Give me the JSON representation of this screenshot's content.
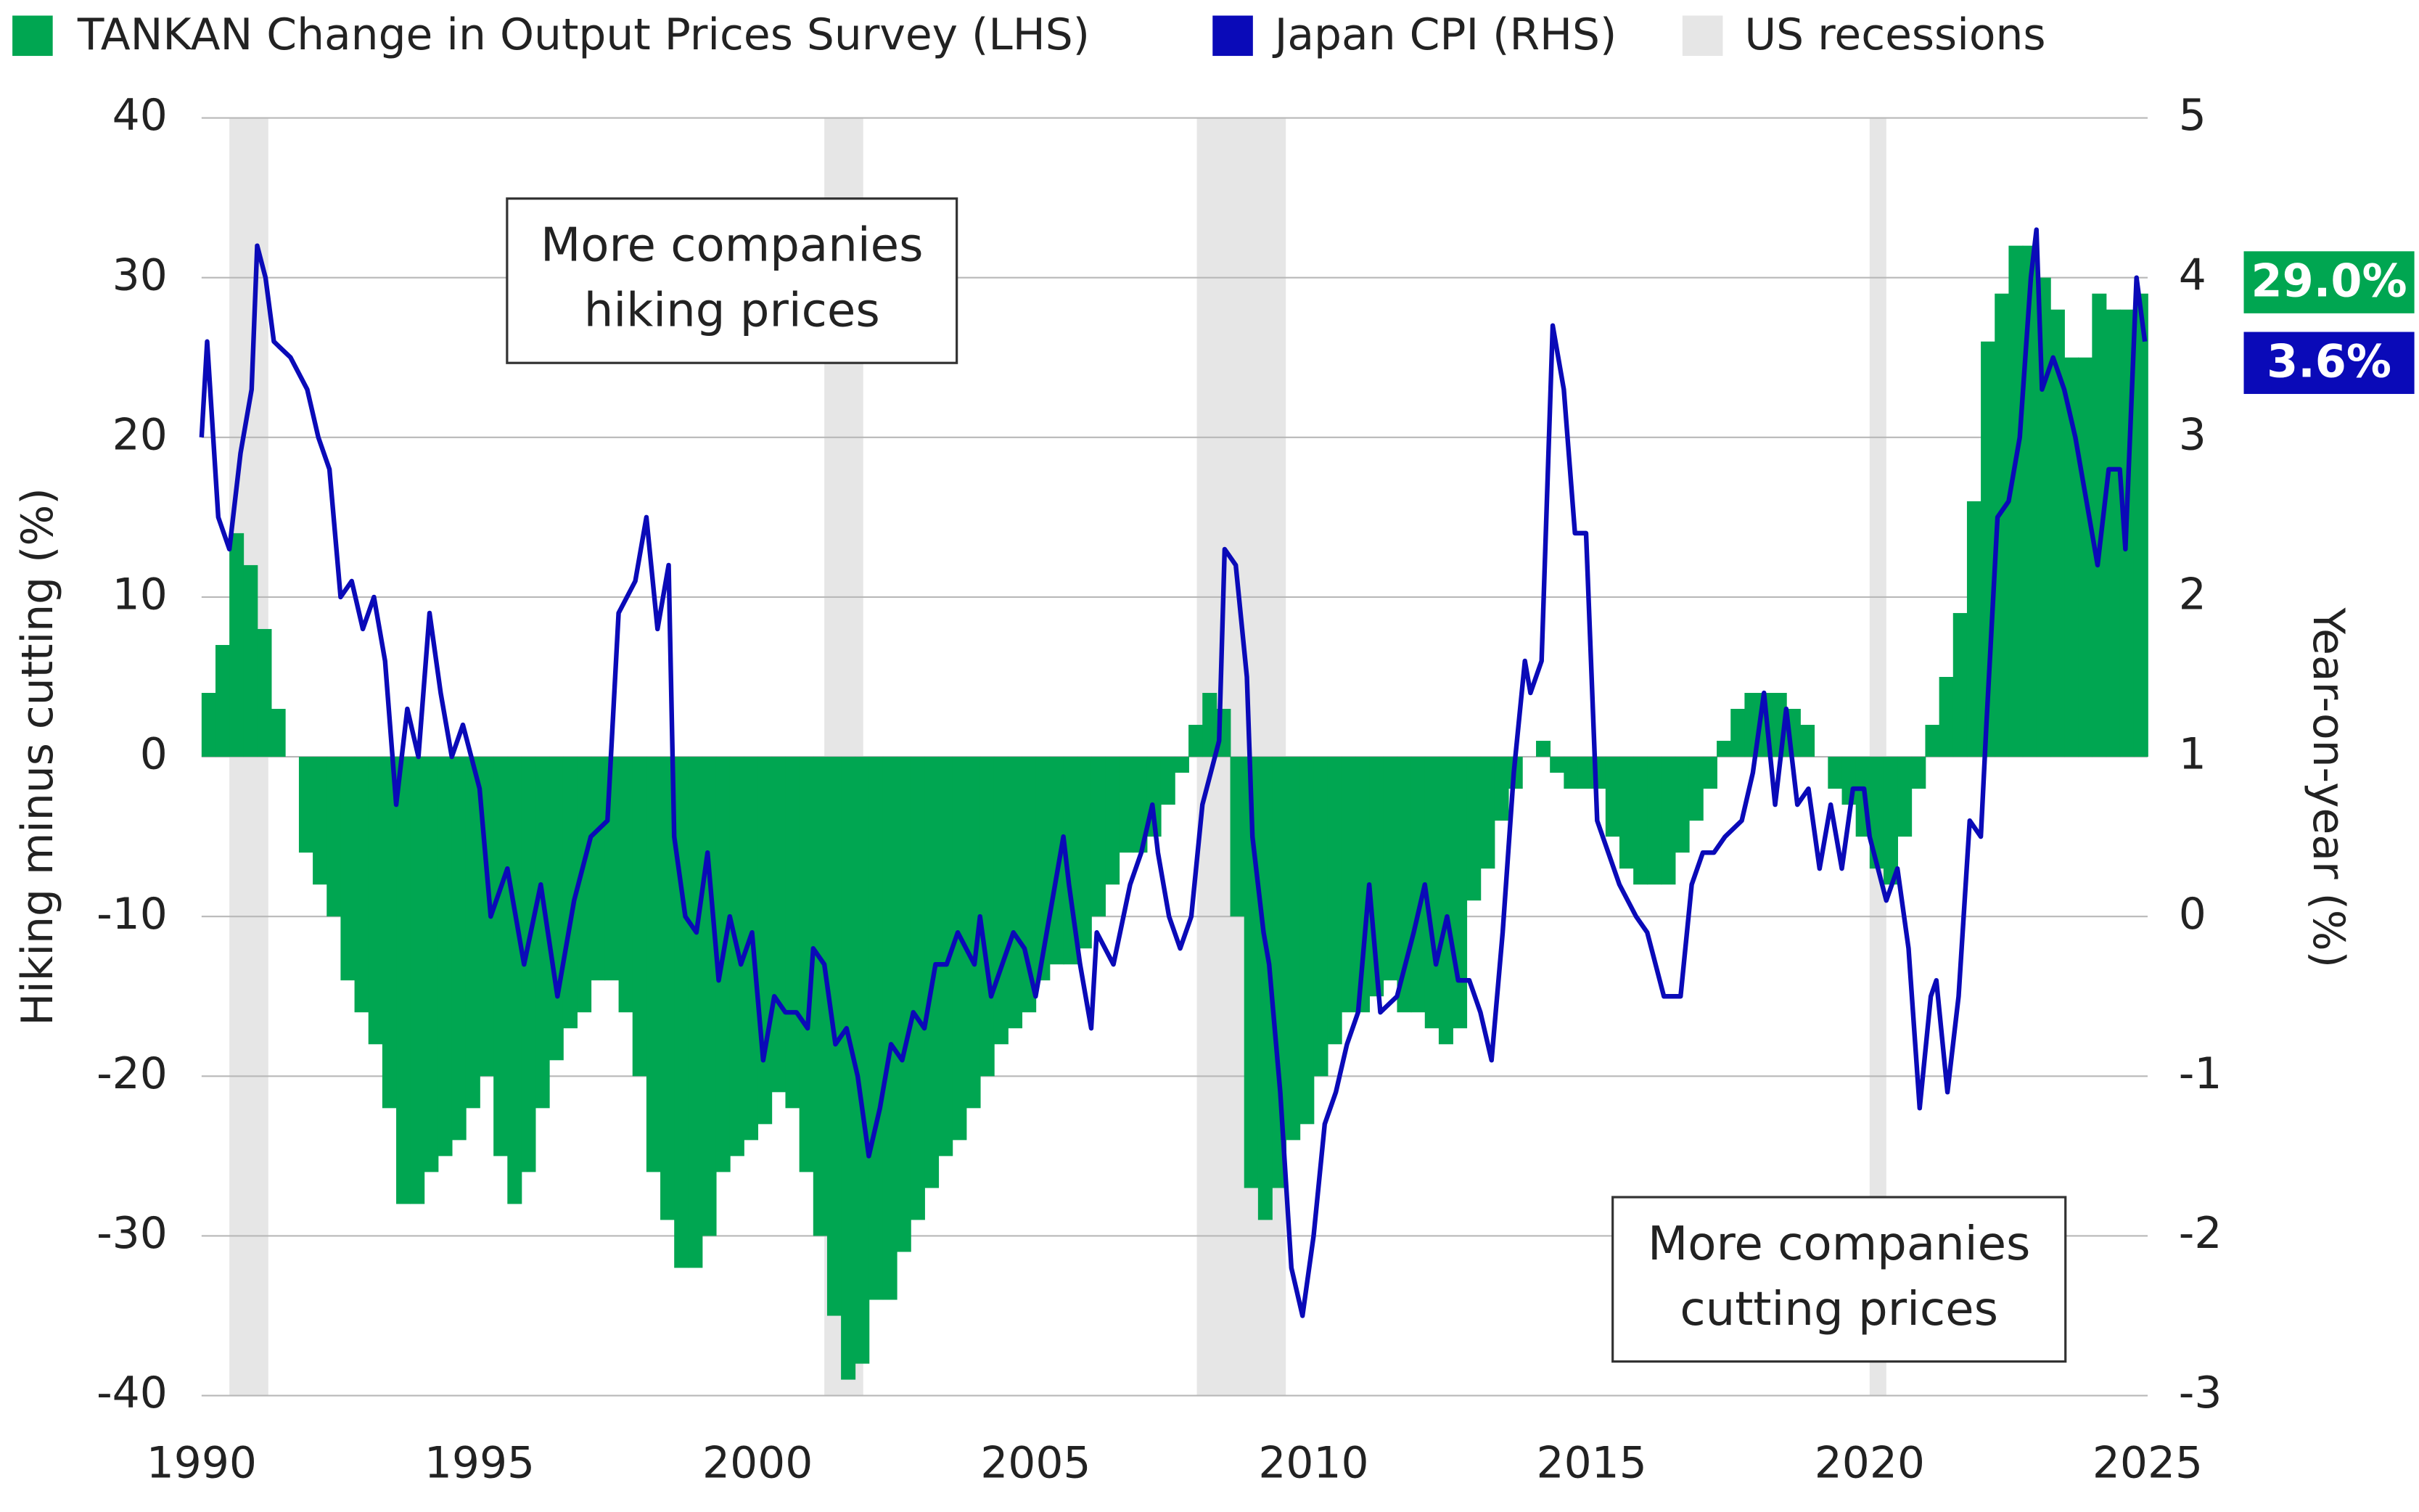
{
  "chart_data": {
    "type": "area-line",
    "legend": [
      "TANKAN Change in Output Prices Survey (LHS)",
      "Japan CPI (RHS)",
      "US recessions"
    ],
    "ylabel": "Hiking minus cutting (%)",
    "y2label": "Year-on-year (%)",
    "annotations": [
      [
        "More companies",
        "hiking prices"
      ],
      [
        "More companies",
        "cutting prices"
      ]
    ],
    "recessions": [
      [
        1990.5,
        1991.2
      ],
      [
        2001.2,
        2001.9
      ],
      [
        2007.9,
        2009.5
      ],
      [
        2020.0,
        2020.3
      ]
    ],
    "recession_color": "#e6e6e6",
    "xlim": [
      1990,
      2025
    ],
    "xticks": [
      1990,
      1995,
      2000,
      2005,
      2010,
      2015,
      2020,
      2025
    ],
    "ylim": [
      -40,
      40
    ],
    "yticks": [
      -40,
      -30,
      -20,
      -10,
      0,
      10,
      20,
      30,
      40
    ],
    "y2lim": [
      -3,
      5
    ],
    "y2ticks": [
      -3,
      -2,
      -1,
      0,
      1,
      2,
      3,
      4,
      5
    ],
    "grid": true,
    "series": [
      {
        "name": "TANKAN Change in Output Prices Survey (LHS)",
        "kind": "area",
        "color": "#00a651",
        "axis": "y",
        "x": [
          1990,
          1990.25,
          1990.5,
          1990.75,
          1991,
          1991.25,
          1991.5,
          1991.75,
          1992,
          1992.25,
          1992.5,
          1992.75,
          1993,
          1993.25,
          1993.5,
          1993.75,
          1994,
          1994.25,
          1994.5,
          1994.75,
          1995,
          1995.25,
          1995.5,
          1995.75,
          1996,
          1996.25,
          1996.5,
          1996.75,
          1997,
          1997.25,
          1997.5,
          1997.75,
          1998,
          1998.25,
          1998.5,
          1998.75,
          1999,
          1999.25,
          1999.5,
          1999.75,
          2000,
          2000.25,
          2000.5,
          2000.75,
          2001,
          2001.25,
          2001.5,
          2001.75,
          2002,
          2002.25,
          2002.5,
          2002.75,
          2003,
          2003.25,
          2003.5,
          2003.75,
          2004,
          2004.25,
          2004.5,
          2004.75,
          2005,
          2005.25,
          2005.5,
          2005.75,
          2006,
          2006.25,
          2006.5,
          2006.75,
          2007,
          2007.25,
          2007.5,
          2007.75,
          2008,
          2008.25,
          2008.5,
          2008.75,
          2009,
          2009.25,
          2009.5,
          2009.75,
          2010,
          2010.25,
          2010.5,
          2010.75,
          2011,
          2011.25,
          2011.5,
          2011.75,
          2012,
          2012.25,
          2012.5,
          2012.75,
          2013,
          2013.25,
          2013.5,
          2013.75,
          2014,
          2014.25,
          2014.5,
          2014.75,
          2015,
          2015.25,
          2015.5,
          2015.75,
          2016,
          2016.25,
          2016.5,
          2016.75,
          2017,
          2017.25,
          2017.5,
          2017.75,
          2018,
          2018.25,
          2018.5,
          2018.75,
          2019,
          2019.25,
          2019.5,
          2019.75,
          2020,
          2020.25,
          2020.5,
          2020.75,
          2021,
          2021.25,
          2021.5,
          2021.75,
          2022,
          2022.25,
          2022.5,
          2022.75,
          2023,
          2023.25,
          2023.5,
          2023.75,
          2024,
          2024.25,
          2024.5,
          2024.75
        ],
        "values": [
          4,
          7,
          14,
          12,
          8,
          3,
          0,
          -6,
          -8,
          -10,
          -14,
          -16,
          -18,
          -22,
          -28,
          -28,
          -26,
          -25,
          -24,
          -22,
          -20,
          -25,
          -28,
          -26,
          -22,
          -19,
          -17,
          -16,
          -14,
          -14,
          -16,
          -20,
          -26,
          -29,
          -32,
          -32,
          -30,
          -26,
          -25,
          -24,
          -23,
          -21,
          -22,
          -26,
          -30,
          -35,
          -39,
          -38,
          -34,
          -34,
          -31,
          -29,
          -27,
          -25,
          -24,
          -22,
          -20,
          -18,
          -17,
          -16,
          -14,
          -13,
          -13,
          -12,
          -10,
          -8,
          -6,
          -6,
          -5,
          -3,
          -1,
          2,
          4,
          3,
          -10,
          -27,
          -29,
          -27,
          -24,
          -23,
          -20,
          -18,
          -16,
          -16,
          -15,
          -14,
          -16,
          -16,
          -17,
          -18,
          -17,
          -9,
          -7,
          -4,
          -2,
          0,
          1,
          -1,
          -2,
          -2,
          -2,
          -5,
          -7,
          -8,
          -8,
          -8,
          -6,
          -4,
          -2,
          1,
          3,
          4,
          4,
          4,
          3,
          2,
          0,
          -2,
          -3,
          -5,
          -7,
          -8,
          -5,
          -2,
          2,
          5,
          9,
          16,
          26,
          29,
          32,
          32,
          30,
          28,
          25,
          25,
          29,
          28,
          28,
          29
        ],
        "end_label": "29.0%"
      },
      {
        "name": "Japan CPI (RHS)",
        "kind": "line",
        "color": "#0a0ab8",
        "axis": "y2",
        "x": [
          1990.0,
          1990.1,
          1990.3,
          1990.5,
          1990.7,
          1990.9,
          1991.0,
          1991.15,
          1991.3,
          1991.6,
          1991.9,
          1992.1,
          1992.3,
          1992.5,
          1992.7,
          1992.9,
          1993.1,
          1993.3,
          1993.5,
          1993.7,
          1993.9,
          1994.1,
          1994.3,
          1994.5,
          1994.7,
          1995.0,
          1995.2,
          1995.5,
          1995.8,
          1996.1,
          1996.4,
          1996.7,
          1997.0,
          1997.3,
          1997.5,
          1997.8,
          1998.0,
          1998.2,
          1998.4,
          1998.5,
          1998.7,
          1998.9,
          1999.1,
          1999.3,
          1999.5,
          1999.7,
          1999.9,
          2000.1,
          2000.3,
          2000.5,
          2000.7,
          2000.9,
          2001.0,
          2001.2,
          2001.4,
          2001.6,
          2001.8,
          2002.0,
          2002.2,
          2002.4,
          2002.6,
          2002.8,
          2003.0,
          2003.2,
          2003.4,
          2003.6,
          2003.9,
          2004.0,
          2004.2,
          2004.4,
          2004.6,
          2004.8,
          2005.0,
          2005.2,
          2005.5,
          2005.6,
          2005.8,
          2006.0,
          2006.1,
          2006.4,
          2006.7,
          2006.9,
          2007.1,
          2007.2,
          2007.4,
          2007.6,
          2007.8,
          2008.0,
          2008.3,
          2008.4,
          2008.6,
          2008.8,
          2008.9,
          2009.1,
          2009.2,
          2009.4,
          2009.6,
          2009.8,
          2010.0,
          2010.2,
          2010.4,
          2010.6,
          2010.8,
          2011.0,
          2011.2,
          2011.5,
          2011.8,
          2012.0,
          2012.2,
          2012.4,
          2012.6,
          2012.8,
          2013.0,
          2013.2,
          2013.4,
          2013.6,
          2013.8,
          2013.9,
          2014.1,
          2014.3,
          2014.5,
          2014.7,
          2014.9,
          2015.1,
          2015.3,
          2015.5,
          2015.8,
          2016.0,
          2016.3,
          2016.6,
          2016.8,
          2017.0,
          2017.2,
          2017.4,
          2017.7,
          2017.9,
          2018.1,
          2018.3,
          2018.5,
          2018.7,
          2018.9,
          2019.1,
          2019.3,
          2019.5,
          2019.7,
          2019.9,
          2020.0,
          2020.3,
          2020.5,
          2020.7,
          2020.9,
          2021.1,
          2021.2,
          2021.4,
          2021.6,
          2021.8,
          2022.0,
          2022.1,
          2022.3,
          2022.5,
          2022.7,
          2022.9,
          2023.0,
          2023.1,
          2023.3,
          2023.5,
          2023.7,
          2023.9,
          2024.1,
          2024.3,
          2024.5,
          2024.6,
          2024.8,
          2024.95
        ],
        "values": [
          3.0,
          3.6,
          2.5,
          2.3,
          2.9,
          3.3,
          4.2,
          4.0,
          3.6,
          3.5,
          3.3,
          3.0,
          2.8,
          2.0,
          2.1,
          1.8,
          2.0,
          1.6,
          0.7,
          1.3,
          1.0,
          1.9,
          1.4,
          1.0,
          1.2,
          0.8,
          0.0,
          0.3,
          -0.3,
          0.2,
          -0.5,
          0.1,
          0.5,
          0.6,
          1.9,
          2.1,
          2.5,
          1.8,
          2.2,
          0.5,
          0.0,
          -0.1,
          0.4,
          -0.4,
          0.0,
          -0.3,
          -0.1,
          -0.9,
          -0.5,
          -0.6,
          -0.6,
          -0.7,
          -0.2,
          -0.3,
          -0.8,
          -0.7,
          -1.0,
          -1.5,
          -1.2,
          -0.8,
          -0.9,
          -0.6,
          -0.7,
          -0.3,
          -0.3,
          -0.1,
          -0.3,
          0.0,
          -0.5,
          -0.3,
          -0.1,
          -0.2,
          -0.5,
          -0.1,
          0.5,
          0.2,
          -0.3,
          -0.7,
          -0.1,
          -0.3,
          0.2,
          0.4,
          0.7,
          0.4,
          0.0,
          -0.2,
          0.0,
          0.7,
          1.1,
          2.3,
          2.2,
          1.5,
          0.5,
          -0.1,
          -0.3,
          -1.1,
          -2.2,
          -2.5,
          -2.0,
          -1.3,
          -1.1,
          -0.8,
          -0.6,
          0.2,
          -0.6,
          -0.5,
          -0.1,
          0.2,
          -0.3,
          0.0,
          -0.4,
          -0.4,
          -0.6,
          -0.9,
          -0.1,
          0.9,
          1.6,
          1.4,
          1.6,
          3.7,
          3.3,
          2.4,
          2.4,
          0.6,
          0.4,
          0.2,
          0.0,
          -0.1,
          -0.5,
          -0.5,
          0.2,
          0.4,
          0.4,
          0.5,
          0.6,
          0.9,
          1.4,
          0.7,
          1.3,
          0.7,
          0.8,
          0.3,
          0.7,
          0.3,
          0.8,
          0.8,
          0.5,
          0.1,
          0.3,
          -0.2,
          -1.2,
          -0.5,
          -0.4,
          -1.1,
          -0.5,
          0.6,
          0.5,
          1.2,
          2.5,
          2.6,
          3.0,
          4.0,
          4.3,
          3.3,
          3.5,
          3.3,
          3.0,
          2.6,
          2.2,
          2.8,
          2.8,
          2.3,
          4.0,
          3.6
        ],
        "end_label": "3.6%"
      }
    ]
  }
}
